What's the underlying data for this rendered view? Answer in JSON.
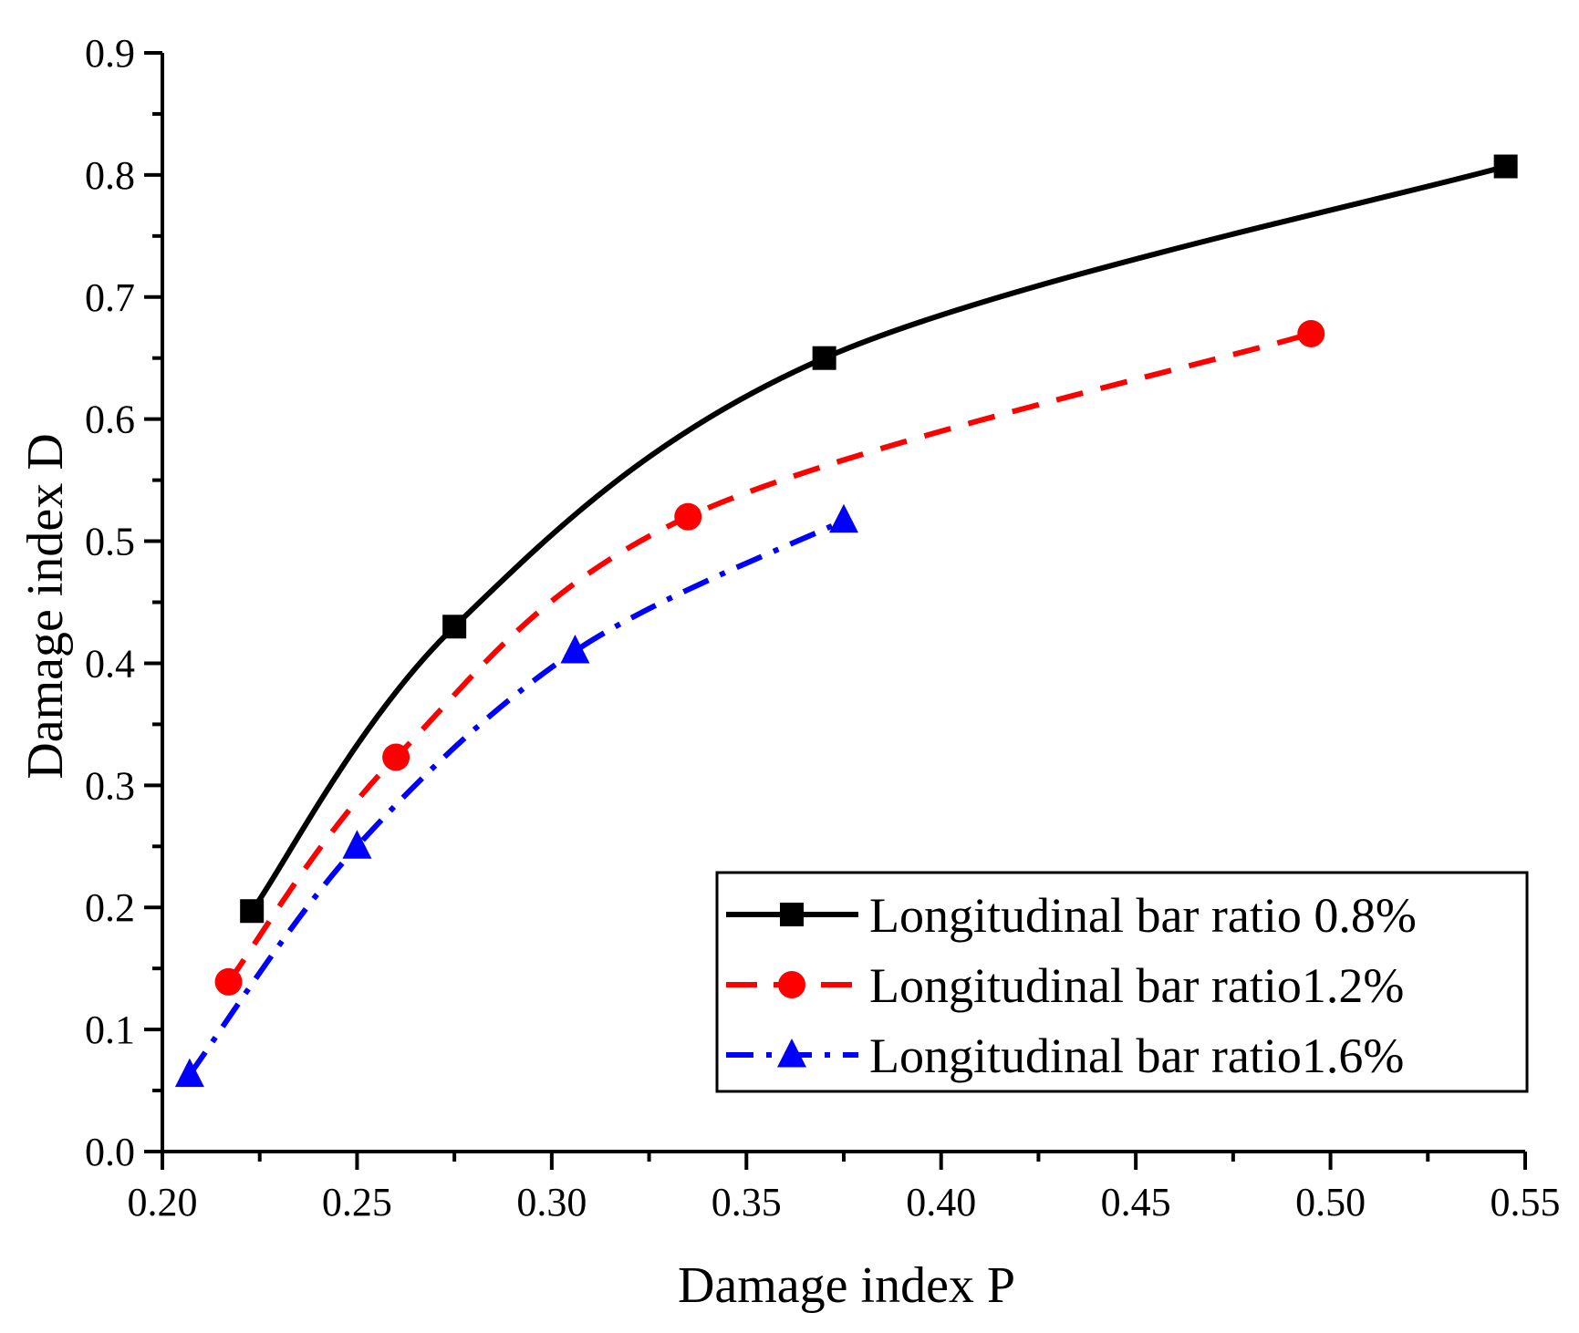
{
  "chart_data": {
    "type": "line",
    "title": "",
    "xlabel": "Damage index P",
    "ylabel": "Damage index D",
    "xlim": [
      0.2,
      0.55
    ],
    "ylim": [
      0.0,
      0.9
    ],
    "x_ticks": [
      "0.20",
      "0.25",
      "0.30",
      "0.35",
      "0.40",
      "0.45",
      "0.50",
      "0.55"
    ],
    "y_ticks": [
      "0.0",
      "0.1",
      "0.2",
      "0.3",
      "0.4",
      "0.5",
      "0.6",
      "0.7",
      "0.8",
      "0.9"
    ],
    "grid": false,
    "legend_position": "bottom-right",
    "series": [
      {
        "name": "Longitudinal bar ratio 0.8%",
        "color": "#000000",
        "line_style": "solid",
        "marker": "square",
        "x": [
          0.223,
          0.275,
          0.37,
          0.545
        ],
        "y": [
          0.197,
          0.43,
          0.65,
          0.807
        ]
      },
      {
        "name": "Longitudinal bar ratio1.2%",
        "color": "#ff0000",
        "line_style": "dash",
        "marker": "circle",
        "x": [
          0.217,
          0.26,
          0.335,
          0.495
        ],
        "y": [
          0.139,
          0.323,
          0.52,
          0.67
        ]
      },
      {
        "name": "Longitudinal bar ratio1.6%",
        "color": "#0000ff",
        "line_style": "dash-dot",
        "marker": "triangle",
        "x": [
          0.207,
          0.25,
          0.306,
          0.375
        ],
        "y": [
          0.063,
          0.25,
          0.41,
          0.517
        ]
      }
    ]
  }
}
